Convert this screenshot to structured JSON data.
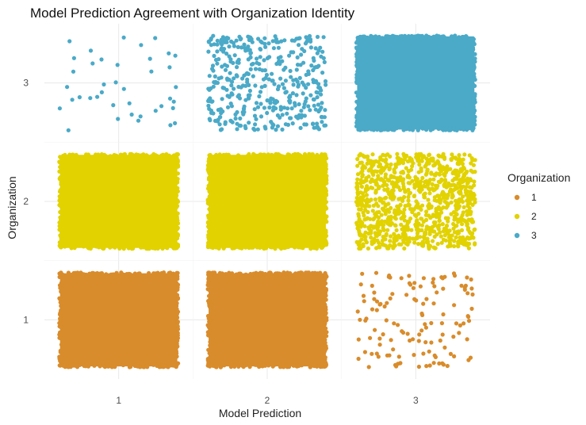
{
  "chart_data": {
    "type": "scatter",
    "title": "Model Prediction Agreement with Organization Identity",
    "xlabel": "Model Prediction",
    "ylabel": "Organization",
    "x_ticks": [
      "1",
      "2",
      "3"
    ],
    "y_ticks": [
      "1",
      "2",
      "3"
    ],
    "xlim": [
      0.5,
      3.5
    ],
    "ylim": [
      0.5,
      3.5
    ],
    "jitter": 0.4,
    "grid": true,
    "legend": {
      "title": "Organization",
      "position": "right",
      "entries": [
        "1",
        "2",
        "3"
      ]
    },
    "series": [
      {
        "name": "1",
        "color": "#D98C2B"
      },
      {
        "name": "2",
        "color": "#E1D200"
      },
      {
        "name": "3",
        "color": "#4AAAC8"
      }
    ],
    "cells": [
      {
        "organization": 1,
        "prediction": 1,
        "count": 3000,
        "solid": true
      },
      {
        "organization": 1,
        "prediction": 2,
        "count": 3000,
        "solid": true
      },
      {
        "organization": 1,
        "prediction": 3,
        "count": 130,
        "solid": false
      },
      {
        "organization": 2,
        "prediction": 1,
        "count": 3000,
        "solid": true
      },
      {
        "organization": 2,
        "prediction": 2,
        "count": 5000,
        "solid": true
      },
      {
        "organization": 2,
        "prediction": 3,
        "count": 1000,
        "solid": false
      },
      {
        "organization": 3,
        "prediction": 1,
        "count": 40,
        "solid": false
      },
      {
        "organization": 3,
        "prediction": 2,
        "count": 420,
        "solid": false
      },
      {
        "organization": 3,
        "prediction": 3,
        "count": 5000,
        "solid": true
      }
    ]
  }
}
